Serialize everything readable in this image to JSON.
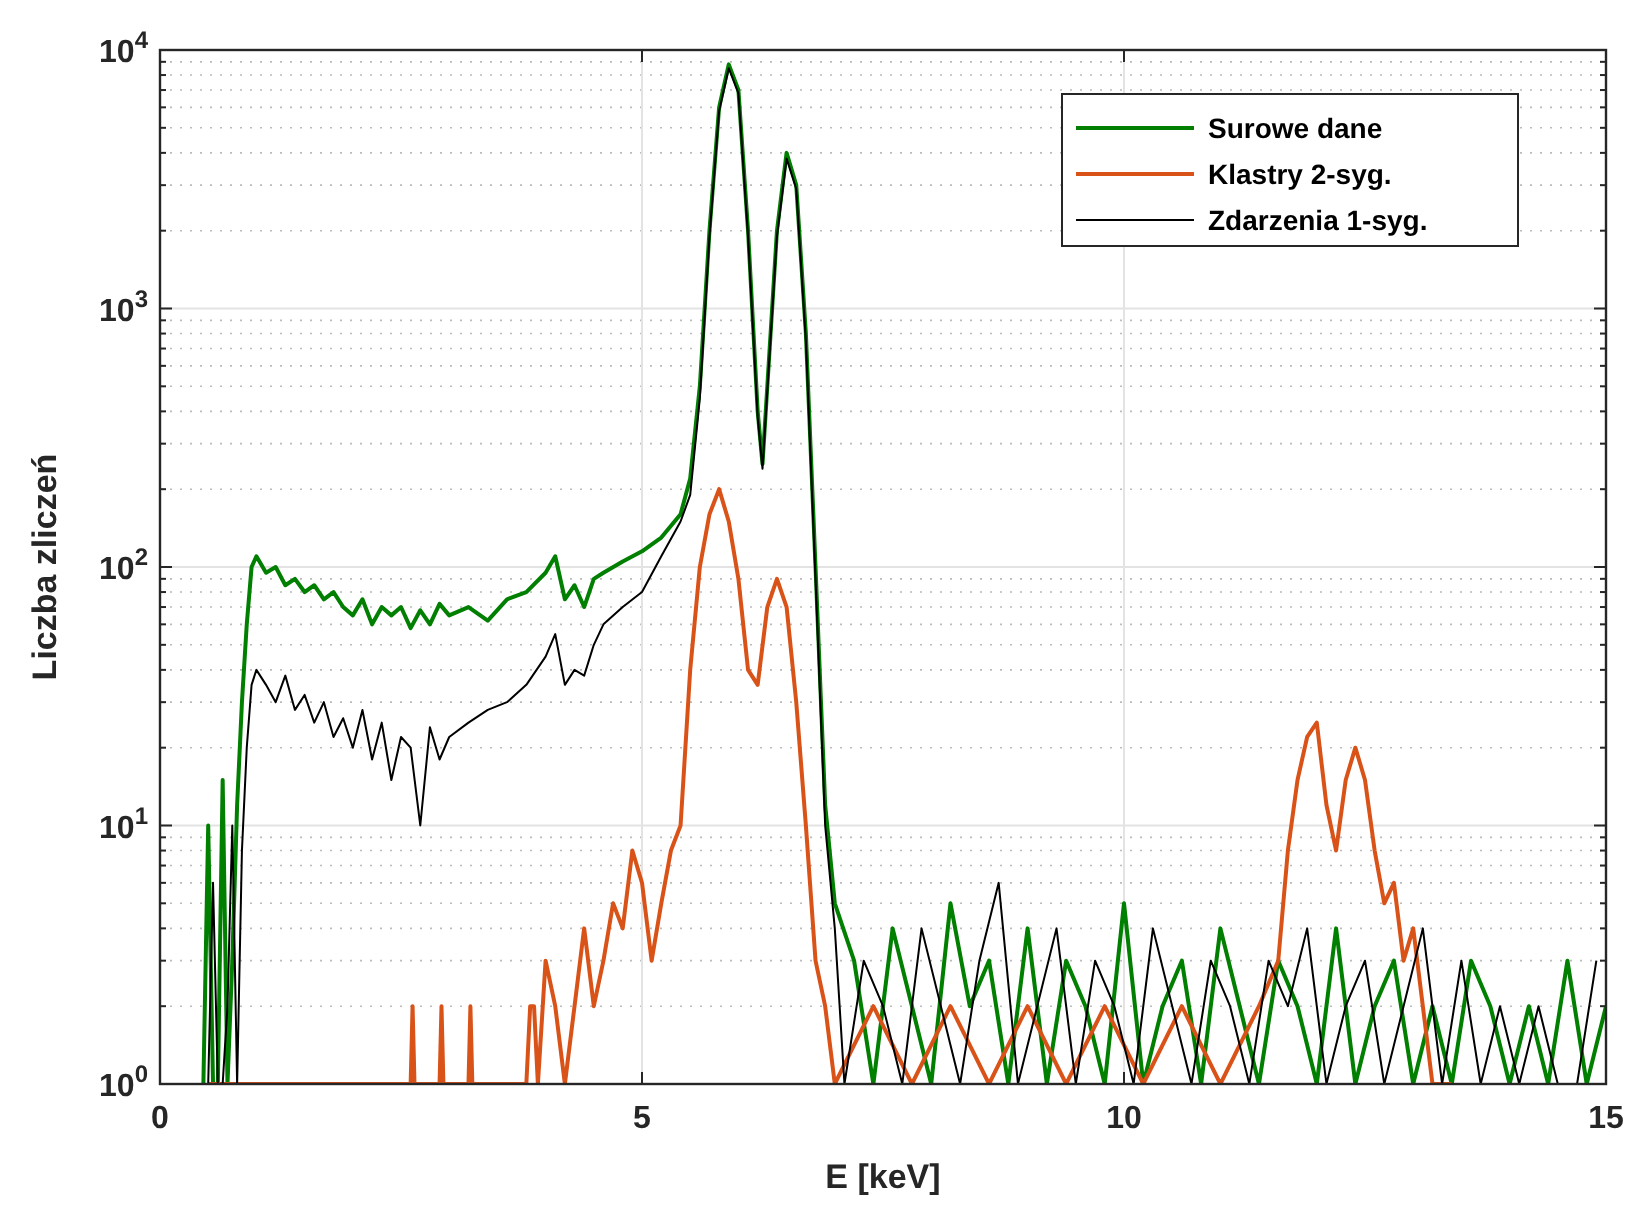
{
  "chart_data": {
    "type": "line",
    "xlabel": "E [keV]",
    "ylabel": "Liczba zliczeń",
    "log": "y",
    "grid": true,
    "legend": "top right",
    "line_style": "solid",
    "xlim": [
      0,
      15
    ],
    "xticks": [
      0,
      5,
      10,
      15
    ],
    "ylim": [
      1,
      10000
    ],
    "yticks": [
      {
        "value": 1,
        "label": "10$^{0}$"
      },
      {
        "value": 10,
        "label": "10$^{1}$"
      },
      {
        "value": 100,
        "label": "10$^{2}$"
      },
      {
        "value": 1000,
        "label": "10$^{3}$"
      },
      {
        "value": 10000,
        "label": "10$^{4}$"
      }
    ],
    "series": [
      {
        "name": "Surowe dane",
        "color": "#007f00",
        "x": [
          0.45,
          0.5,
          0.55,
          0.6,
          0.65,
          0.7,
          0.75,
          0.8,
          0.85,
          0.9,
          0.95,
          1.0,
          1.1,
          1.2,
          1.3,
          1.4,
          1.5,
          1.6,
          1.7,
          1.8,
          1.9,
          2.0,
          2.1,
          2.2,
          2.3,
          2.4,
          2.5,
          2.6,
          2.7,
          2.8,
          2.9,
          3.0,
          3.2,
          3.4,
          3.6,
          3.8,
          4.0,
          4.1,
          4.2,
          4.3,
          4.4,
          4.5,
          4.6,
          4.8,
          5.0,
          5.2,
          5.4,
          5.5,
          5.6,
          5.7,
          5.8,
          5.9,
          6.0,
          6.1,
          6.2,
          6.25,
          6.3,
          6.4,
          6.5,
          6.6,
          6.7,
          6.8,
          6.9,
          7.0,
          7.2,
          7.4,
          7.6,
          7.8,
          8.0,
          8.2,
          8.4,
          8.6,
          8.8,
          9.0,
          9.2,
          9.4,
          9.6,
          9.8,
          10.0,
          10.2,
          10.4,
          10.6,
          10.8,
          11.0,
          11.2,
          11.4,
          11.6,
          11.8,
          12.0,
          12.2,
          12.4,
          12.6,
          12.8,
          13.0,
          13.2,
          13.4,
          13.6,
          13.8,
          14.0,
          14.2,
          14.4,
          14.6,
          14.8,
          15.0
        ],
        "values": [
          1,
          10,
          1,
          1,
          15,
          1,
          3,
          12,
          30,
          60,
          100,
          110,
          95,
          100,
          85,
          90,
          80,
          85,
          75,
          80,
          70,
          65,
          75,
          60,
          70,
          65,
          70,
          58,
          68,
          60,
          72,
          65,
          70,
          62,
          75,
          80,
          95,
          110,
          75,
          85,
          70,
          90,
          95,
          105,
          115,
          130,
          160,
          220,
          500,
          2000,
          6000,
          8800,
          7000,
          2000,
          400,
          250,
          500,
          2000,
          4000,
          3000,
          800,
          100,
          12,
          5,
          3,
          1,
          4,
          2,
          1,
          5,
          2,
          3,
          1,
          4,
          1,
          3,
          2,
          1,
          5,
          1,
          2,
          3,
          1,
          4,
          2,
          1,
          3,
          2,
          1,
          4,
          1,
          2,
          3,
          1,
          2,
          1,
          3,
          2,
          1,
          2,
          1,
          3,
          1,
          2
        ]
      },
      {
        "name": "Klastry 2-syg.",
        "color": "#d95319",
        "x": [
          0.5,
          2.6,
          2.62,
          2.64,
          2.9,
          2.92,
          2.94,
          3.2,
          3.22,
          3.24,
          3.8,
          3.84,
          3.88,
          3.92,
          4.0,
          4.1,
          4.2,
          4.3,
          4.4,
          4.5,
          4.6,
          4.7,
          4.8,
          4.9,
          5.0,
          5.1,
          5.2,
          5.3,
          5.4,
          5.5,
          5.6,
          5.7,
          5.8,
          5.9,
          6.0,
          6.1,
          6.2,
          6.3,
          6.4,
          6.5,
          6.6,
          6.7,
          6.8,
          6.9,
          7.0,
          7.4,
          7.8,
          8.2,
          8.6,
          9.0,
          9.4,
          9.8,
          10.2,
          10.6,
          11.0,
          11.4,
          11.6,
          11.7,
          11.8,
          11.9,
          12.0,
          12.1,
          12.2,
          12.3,
          12.4,
          12.5,
          12.6,
          12.7,
          12.8,
          12.9,
          13.0,
          13.1,
          13.2,
          13.4
        ],
        "values": [
          1,
          1,
          2,
          1,
          1,
          2,
          1,
          1,
          2,
          1,
          1,
          2,
          2,
          1,
          3,
          2,
          1,
          2,
          4,
          2,
          3,
          5,
          4,
          8,
          6,
          3,
          5,
          8,
          10,
          40,
          100,
          160,
          200,
          150,
          90,
          40,
          35,
          70,
          90,
          70,
          30,
          10,
          3,
          2,
          1,
          2,
          1,
          2,
          1,
          2,
          1,
          2,
          1,
          2,
          1,
          2,
          3,
          8,
          15,
          22,
          25,
          12,
          8,
          15,
          20,
          15,
          8,
          5,
          6,
          3,
          4,
          2,
          1,
          1
        ]
      },
      {
        "name": "Zdarzenia 1-syg.",
        "color": "#000000",
        "x": [
          0.45,
          0.5,
          0.55,
          0.6,
          0.65,
          0.7,
          0.75,
          0.8,
          0.85,
          0.9,
          0.95,
          1.0,
          1.1,
          1.2,
          1.3,
          1.4,
          1.5,
          1.6,
          1.7,
          1.8,
          1.9,
          2.0,
          2.1,
          2.2,
          2.3,
          2.4,
          2.5,
          2.6,
          2.7,
          2.8,
          2.9,
          3.0,
          3.2,
          3.4,
          3.6,
          3.8,
          4.0,
          4.1,
          4.2,
          4.3,
          4.4,
          4.5,
          4.6,
          4.8,
          5.0,
          5.2,
          5.4,
          5.5,
          5.6,
          5.7,
          5.8,
          5.9,
          6.0,
          6.1,
          6.2,
          6.25,
          6.3,
          6.4,
          6.5,
          6.6,
          6.7,
          6.8,
          6.9,
          7.0,
          7.1,
          7.3,
          7.5,
          7.7,
          7.9,
          8.1,
          8.3,
          8.5,
          8.7,
          8.9,
          9.1,
          9.3,
          9.5,
          9.7,
          9.9,
          10.1,
          10.3,
          10.5,
          10.7,
          10.9,
          11.1,
          11.3,
          11.5,
          11.7,
          11.9,
          12.1,
          12.3,
          12.5,
          12.7,
          12.9,
          13.1,
          13.3,
          13.5,
          13.7,
          13.9,
          14.1,
          14.3,
          14.5,
          14.7,
          14.9
        ],
        "values": [
          1,
          1,
          6,
          1,
          1,
          2,
          10,
          1,
          8,
          20,
          35,
          40,
          35,
          30,
          38,
          28,
          32,
          25,
          30,
          22,
          26,
          20,
          28,
          18,
          25,
          15,
          22,
          20,
          10,
          24,
          18,
          22,
          25,
          28,
          30,
          35,
          45,
          55,
          35,
          40,
          38,
          50,
          60,
          70,
          80,
          110,
          150,
          190,
          450,
          1900,
          5800,
          8500,
          6800,
          1900,
          380,
          240,
          480,
          1900,
          3800,
          2900,
          750,
          90,
          10,
          4,
          1,
          3,
          2,
          1,
          4,
          2,
          1,
          3,
          6,
          1,
          2,
          4,
          1,
          3,
          2,
          1,
          4,
          2,
          1,
          3,
          2,
          1,
          3,
          2,
          4,
          1,
          2,
          3,
          1,
          2,
          4,
          1,
          3,
          1,
          2,
          1,
          2,
          1,
          1,
          3
        ]
      }
    ]
  }
}
